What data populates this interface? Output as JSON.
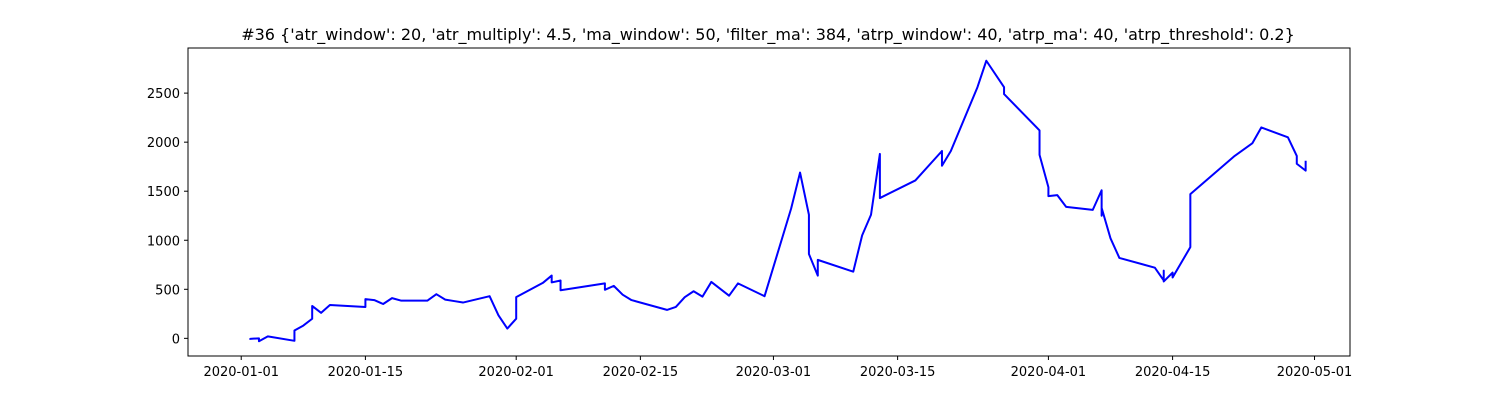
{
  "chart_data": {
    "type": "line",
    "title": "#36 {'atr_window': 20, 'atr_multiply': 4.5, 'ma_window': 50, 'filter_ma': 384, 'atrp_window': 40, 'atrp_ma': 40, 'atrp_threshold': 0.2}",
    "xlabel": "",
    "ylabel": "",
    "x_type": "date",
    "xlim": [
      "2019-12-26",
      "2020-05-05"
    ],
    "ylim": [
      -180,
      2960
    ],
    "x_ticks": [
      "2020-01-01",
      "2020-01-15",
      "2020-02-01",
      "2020-02-15",
      "2020-03-01",
      "2020-03-15",
      "2020-04-01",
      "2020-04-15",
      "2020-05-01"
    ],
    "y_ticks": [
      0,
      500,
      1000,
      1500,
      2000,
      2500
    ],
    "grid": false,
    "series": [
      {
        "color": "#0000ff",
        "x": [
          "2020-01-02",
          "2020-01-02",
          "2020-01-03",
          "2020-01-03",
          "2020-01-04",
          "2020-01-07",
          "2020-01-07",
          "2020-01-08",
          "2020-01-09",
          "2020-01-09",
          "2020-01-10",
          "2020-01-11",
          "2020-01-15",
          "2020-01-15",
          "2020-01-16",
          "2020-01-17",
          "2020-01-18",
          "2020-01-19",
          "2020-01-22",
          "2020-01-23",
          "2020-01-24",
          "2020-01-25",
          "2020-01-26",
          "2020-01-29",
          "2020-01-30",
          "2020-01-31",
          "2020-02-01",
          "2020-02-01",
          "2020-02-04",
          "2020-02-05",
          "2020-02-05",
          "2020-02-06",
          "2020-02-06",
          "2020-02-11",
          "2020-02-11",
          "2020-02-12",
          "2020-02-13",
          "2020-02-14",
          "2020-02-18",
          "2020-02-19",
          "2020-02-20",
          "2020-02-21",
          "2020-02-22",
          "2020-02-23",
          "2020-02-25",
          "2020-02-26",
          "2020-02-29",
          "2020-03-03",
          "2020-03-04",
          "2020-03-05",
          "2020-03-05",
          "2020-03-06",
          "2020-03-06",
          "2020-03-10",
          "2020-03-11",
          "2020-03-12",
          "2020-03-13",
          "2020-03-13",
          "2020-03-17",
          "2020-03-20",
          "2020-03-20",
          "2020-03-21",
          "2020-03-24",
          "2020-03-25",
          "2020-03-27",
          "2020-03-27",
          "2020-03-31",
          "2020-03-31",
          "2020-04-01",
          "2020-04-01",
          "2020-04-02",
          "2020-04-03",
          "2020-04-06",
          "2020-04-07",
          "2020-04-07",
          "2020-04-07",
          "2020-04-08",
          "2020-04-09",
          "2020-04-13",
          "2020-04-14",
          "2020-04-14",
          "2020-04-14",
          "2020-04-15",
          "2020-04-15",
          "2020-04-17",
          "2020-04-17",
          "2020-04-22",
          "2020-04-24",
          "2020-04-25",
          "2020-04-28",
          "2020-04-29",
          "2020-04-29",
          "2020-04-30",
          "2020-04-30"
        ],
        "y": [
          0,
          -5,
          0,
          -30,
          20,
          -25,
          80,
          130,
          200,
          330,
          260,
          340,
          320,
          400,
          390,
          350,
          410,
          385,
          385,
          450,
          395,
          380,
          365,
          430,
          235,
          100,
          200,
          420,
          565,
          640,
          570,
          590,
          490,
          560,
          495,
          535,
          445,
          390,
          290,
          320,
          420,
          480,
          425,
          575,
          435,
          560,
          430,
          1325,
          1690,
          1260,
          860,
          640,
          800,
          680,
          1050,
          1260,
          1880,
          1430,
          1610,
          1910,
          1760,
          1910,
          2560,
          2830,
          2560,
          2490,
          2120,
          1870,
          1540,
          1450,
          1460,
          1340,
          1310,
          1510,
          1250,
          1330,
          1020,
          820,
          720,
          590,
          690,
          580,
          670,
          620,
          930,
          1470,
          1860,
          1990,
          2150,
          2050,
          1860,
          1780,
          1710,
          1810
        ]
      }
    ]
  }
}
